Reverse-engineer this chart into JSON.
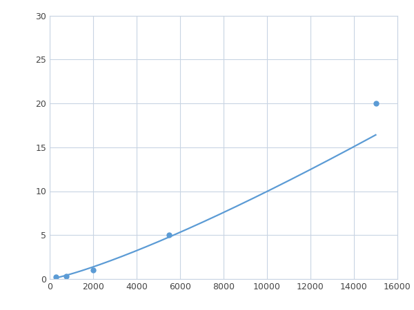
{
  "x": [
    300,
    750,
    2000,
    5500,
    15000
  ],
  "y": [
    0.2,
    0.3,
    1.0,
    5.0,
    20.0
  ],
  "line_color": "#5B9BD5",
  "marker_color": "#5B9BD5",
  "marker_size": 5,
  "line_width": 1.6,
  "xlim": [
    0,
    16000
  ],
  "ylim": [
    0,
    30
  ],
  "xticks": [
    0,
    2000,
    4000,
    6000,
    8000,
    10000,
    12000,
    14000,
    16000
  ],
  "yticks": [
    0,
    5,
    10,
    15,
    20,
    25,
    30
  ],
  "grid_color": "#c8d4e3",
  "background_color": "#ffffff",
  "figsize": [
    6.0,
    4.5
  ],
  "dpi": 100
}
